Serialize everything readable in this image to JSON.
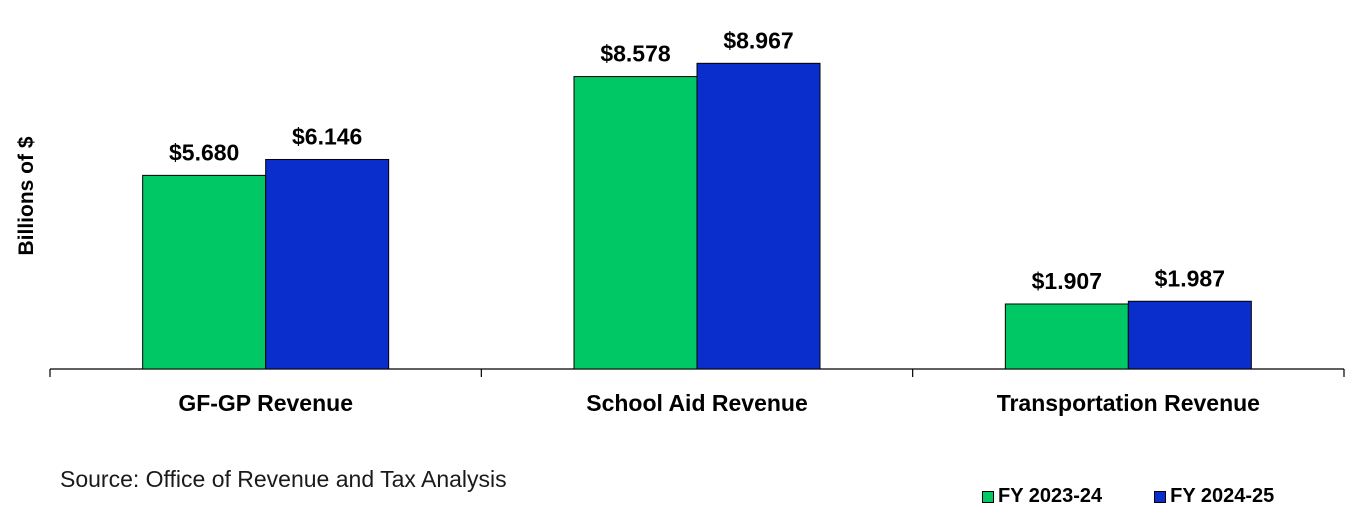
{
  "chart_data": {
    "type": "bar",
    "title": "",
    "xlabel": "",
    "ylabel": "Billions of $",
    "ylim": [
      0,
      9.7
    ],
    "grid": false,
    "legend_position": "bottom-right",
    "categories": [
      "GF-GP Revenue",
      "School Aid Revenue",
      "Transportation Revenue"
    ],
    "series": [
      {
        "name": "FY 2023-24",
        "color": "#00c864",
        "values": [
          5.68,
          8.578,
          1.907
        ],
        "labels": [
          "$5.680",
          "$8.578",
          "$1.907"
        ]
      },
      {
        "name": "FY 2024-25",
        "color": "#0a2ecc",
        "values": [
          6.146,
          8.967,
          1.987
        ],
        "labels": [
          "$6.146",
          "$8.967",
          "$1.987"
        ]
      }
    ]
  },
  "footer": {
    "source": "Source:  Office of Revenue and Tax Analysis"
  }
}
